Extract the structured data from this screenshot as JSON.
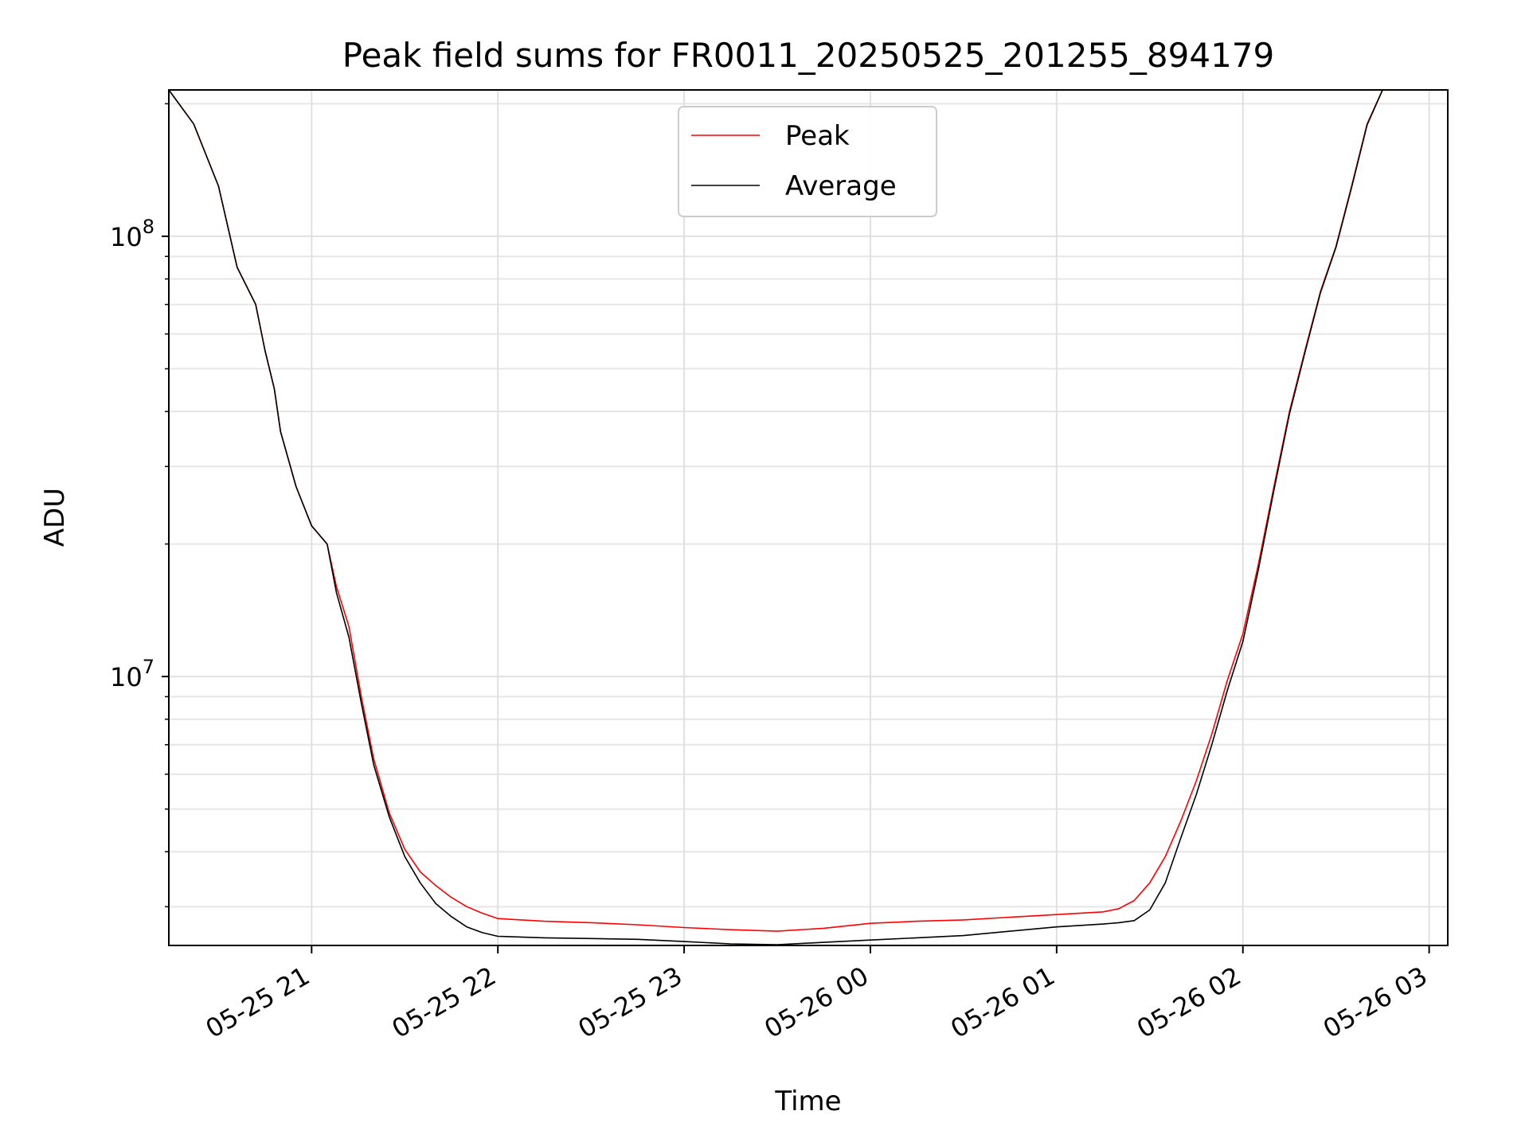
{
  "chart_data": {
    "type": "line",
    "title": "Peak field sums for FR0011_20250525_201255_894179",
    "xlabel": "Time",
    "ylabel": "ADU",
    "yscale": "log",
    "x_tick_labels": [
      "05-25 21",
      "05-25 22",
      "05-25 23",
      "05-26 00",
      "05-26 01",
      "05-26 02",
      "05-26 03"
    ],
    "y_tick_labels": [
      {
        "base": "10",
        "exp": "7"
      },
      {
        "base": "10",
        "exp": "8"
      }
    ],
    "grid": true,
    "legend_position": "upper center",
    "colors": {
      "Peak": "#ff0000",
      "Average": "#000000"
    },
    "x_range": [
      "2025-05-25 20:14",
      "2025-05-26 03:06"
    ],
    "y_range": [
      2450000,
      215000000
    ],
    "x": [
      "2025-05-25 20:14",
      "2025-05-25 20:22",
      "2025-05-25 20:30",
      "2025-05-25 20:36",
      "2025-05-25 20:42",
      "2025-05-25 20:45",
      "2025-05-25 20:48",
      "2025-05-25 20:50",
      "2025-05-25 20:55",
      "2025-05-25 21:00",
      "2025-05-25 21:05",
      "2025-05-25 21:08",
      "2025-05-25 21:12",
      "2025-05-25 21:16",
      "2025-05-25 21:20",
      "2025-05-25 21:25",
      "2025-05-25 21:30",
      "2025-05-25 21:35",
      "2025-05-25 21:40",
      "2025-05-25 21:45",
      "2025-05-25 21:50",
      "2025-05-25 21:55",
      "2025-05-25 22:00",
      "2025-05-25 22:15",
      "2025-05-25 22:30",
      "2025-05-25 22:45",
      "2025-05-25 23:00",
      "2025-05-25 23:15",
      "2025-05-25 23:30",
      "2025-05-25 23:45",
      "2025-05-26 00:00",
      "2025-05-26 00:15",
      "2025-05-26 00:30",
      "2025-05-26 00:45",
      "2025-05-26 01:00",
      "2025-05-26 01:15",
      "2025-05-26 01:20",
      "2025-05-26 01:25",
      "2025-05-26 01:30",
      "2025-05-26 01:35",
      "2025-05-26 01:40",
      "2025-05-26 01:45",
      "2025-05-26 01:50",
      "2025-05-26 01:55",
      "2025-05-26 02:00",
      "2025-05-26 02:05",
      "2025-05-26 02:10",
      "2025-05-26 02:15",
      "2025-05-26 02:20",
      "2025-05-26 02:25",
      "2025-05-26 02:30",
      "2025-05-26 02:35",
      "2025-05-26 02:40",
      "2025-05-26 02:45"
    ],
    "series": [
      {
        "name": "Peak",
        "values": [
          215000000,
          180000000,
          130000000,
          85000000,
          70000000,
          55000000,
          45000000,
          36000000,
          27000000,
          22000000,
          20000000,
          16000000,
          13000000,
          9000000,
          6500000,
          4900000,
          4050000,
          3600000,
          3350000,
          3150000,
          3000000,
          2900000,
          2820000,
          2780000,
          2760000,
          2730000,
          2690000,
          2660000,
          2640000,
          2680000,
          2750000,
          2780000,
          2800000,
          2840000,
          2880000,
          2920000,
          2970000,
          3100000,
          3400000,
          3900000,
          4700000,
          5800000,
          7400000,
          9800000,
          12500000,
          18000000,
          27000000,
          40000000,
          55000000,
          75000000,
          95000000,
          130000000,
          180000000,
          215000000
        ]
      },
      {
        "name": "Average",
        "values": [
          215000000,
          180000000,
          130000000,
          85000000,
          70000000,
          55000000,
          45000000,
          36000000,
          27000000,
          22000000,
          20000000,
          15500000,
          12300000,
          8700000,
          6300000,
          4800000,
          3900000,
          3400000,
          3050000,
          2850000,
          2700000,
          2620000,
          2570000,
          2550000,
          2540000,
          2530000,
          2500000,
          2470000,
          2460000,
          2490000,
          2520000,
          2550000,
          2580000,
          2640000,
          2700000,
          2740000,
          2760000,
          2790000,
          2950000,
          3400000,
          4300000,
          5400000,
          7000000,
          9300000,
          12000000,
          17500000,
          26500000,
          39500000,
          54500000,
          74500000,
          94500000,
          129000000,
          179000000,
          215000000
        ]
      }
    ]
  }
}
